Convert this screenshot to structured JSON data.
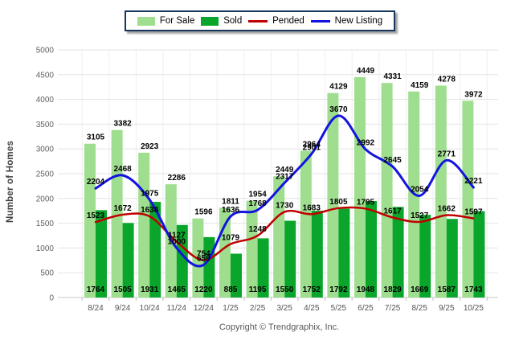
{
  "chart_data": {
    "type": "bar",
    "subtype": "grouped-bars-with-smooth-lines",
    "title": "",
    "ylabel": "Number of Homes",
    "xlabel": "",
    "ylim": [
      0,
      5000
    ],
    "ytick_step": 500,
    "grid": true,
    "legend_position": "top",
    "categories": [
      "8/24",
      "9/24",
      "10/24",
      "11/24",
      "12/24",
      "1/25",
      "2/25",
      "3/25",
      "4/25",
      "5/25",
      "6/25",
      "7/25",
      "8/25",
      "9/25",
      "10/25"
    ],
    "series": [
      {
        "name": "For Sale",
        "type": "bar",
        "color": "#9EDE8E",
        "values": [
          3105,
          3382,
          2923,
          2286,
          1596,
          1811,
          1954,
          2449,
          2964,
          4129,
          4449,
          4331,
          4159,
          4278,
          3972
        ]
      },
      {
        "name": "Sold",
        "type": "bar",
        "color": "#0AA62B",
        "values": [
          1764,
          1505,
          1931,
          1465,
          1220,
          885,
          1195,
          1550,
          1752,
          1792,
          1948,
          1829,
          1669,
          1587,
          1743
        ]
      },
      {
        "name": "Pended",
        "type": "line",
        "color": "#C00000",
        "values": [
          1523,
          1672,
          1638,
          1127,
          754,
          1079,
          1248,
          1730,
          1683,
          1805,
          1795,
          1617,
          1527,
          1662,
          1597
        ]
      },
      {
        "name": "New Listing",
        "type": "line",
        "color": "#1414E0",
        "values": [
          2204,
          2468,
          1975,
          1000,
          659,
          1636,
          1768,
          2317,
          2901,
          3670,
          2992,
          2645,
          2054,
          2771,
          2221
        ]
      }
    ]
  },
  "footer": {
    "copyright": "Copyright © Trendgraphix, Inc."
  },
  "colors": {
    "grid_h": "#e3e3e3",
    "grid_v": "#efefef",
    "axis_line": "#c9c9c9",
    "tick": "#bbbbbb",
    "tick_label": "#606060",
    "value_label": "#000000"
  }
}
